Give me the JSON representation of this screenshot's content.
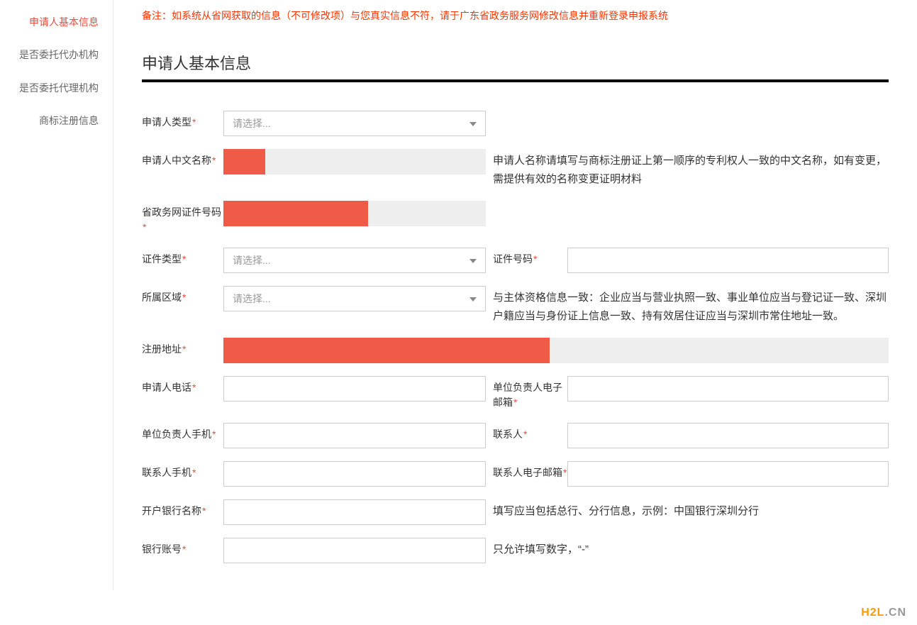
{
  "sidebar": {
    "items": [
      {
        "label": "申请人基本信息",
        "active": true
      },
      {
        "label": "是否委托代办机构",
        "active": false
      },
      {
        "label": "是否委托代理机构",
        "active": false
      },
      {
        "label": "商标注册信息",
        "active": false
      }
    ]
  },
  "notice": "备注：如系统从省网获取的信息（不可修改项）与您真实信息不符，请于广东省政务服务网修改信息并重新登录申报系统",
  "section_title": "申请人基本信息",
  "form": {
    "applicant_type": {
      "label": "申请人类型",
      "placeholder": "请选择..."
    },
    "applicant_name": {
      "label": "申请人中文名称",
      "help": "申请人名称请填写与商标注册证上第一顺序的专利权人一致的中文名称，如有变更，需提供有效的名称变更证明材料",
      "redacted_width": "16%"
    },
    "gov_id": {
      "label": "省政务网证件号码",
      "redacted_width": "55%"
    },
    "id_type": {
      "label": "证件类型",
      "placeholder": "请选择..."
    },
    "id_number": {
      "label": "证件号码"
    },
    "region": {
      "label": "所属区域",
      "placeholder": "请选择...",
      "help": "与主体资格信息一致：企业应当与营业执照一致、事业单位应当与登记证一致、深圳户籍应当与身份证上信息一致、持有效居住证应当与深圳市常住地址一致。"
    },
    "address": {
      "label": "注册地址",
      "redacted_width": "49%"
    },
    "phone": {
      "label": "申请人电话"
    },
    "manager_email": {
      "label": "单位负责人电子邮箱"
    },
    "manager_mobile": {
      "label": "单位负责人手机"
    },
    "contact": {
      "label": "联系人"
    },
    "contact_mobile": {
      "label": "联系人手机"
    },
    "contact_email": {
      "label": "联系人电子邮箱"
    },
    "bank_name": {
      "label": "开户银行名称",
      "help": "填写应当包括总行、分行信息，示例：中国银行深圳分行"
    },
    "bank_account": {
      "label": "银行账号",
      "help": "只允许填写数字，“-”"
    }
  },
  "watermark": {
    "part1": "H2L",
    "part2": ".CN"
  }
}
